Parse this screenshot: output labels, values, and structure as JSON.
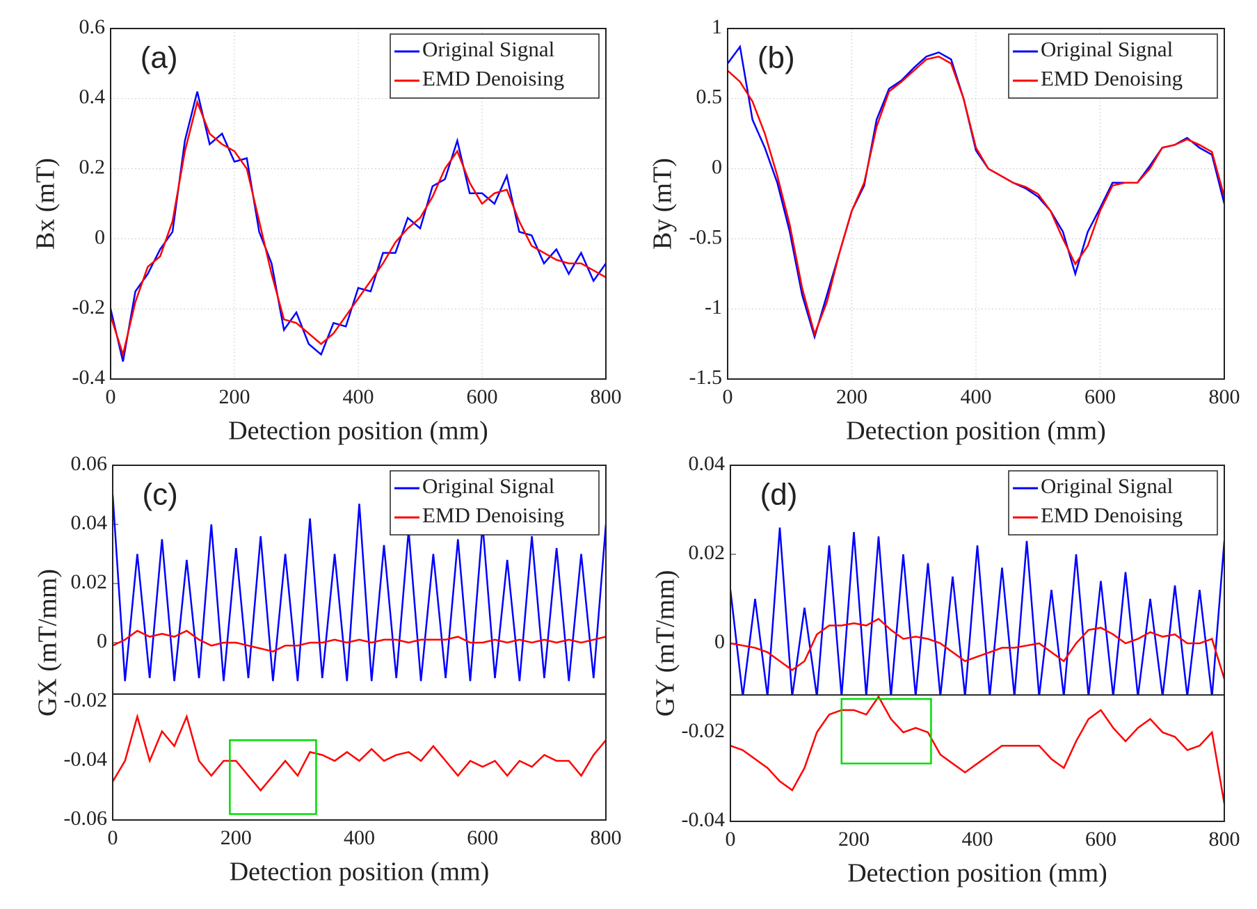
{
  "chart_data": [
    {
      "type": "line",
      "annotation": "(a)",
      "xlabel": "Detection position (mm)",
      "ylabel": "Bx (mT)",
      "x": [
        0,
        20,
        40,
        60,
        80,
        100,
        120,
        140,
        160,
        180,
        200,
        220,
        240,
        260,
        280,
        300,
        320,
        340,
        360,
        380,
        400,
        420,
        440,
        460,
        480,
        500,
        520,
        540,
        560,
        580,
        600,
        620,
        640,
        660,
        680,
        700,
        720,
        740,
        760,
        780,
        800
      ],
      "xlim": [
        0,
        800
      ],
      "xticks": [
        0,
        200,
        400,
        600,
        800
      ],
      "ylim": [
        -0.4,
        0.6
      ],
      "yticks": [
        -0.4,
        -0.2,
        0,
        0.2,
        0.4,
        0.6
      ],
      "grid": true,
      "legend": "upper right",
      "series": [
        {
          "name": "Original Signal",
          "color": "#0000ff",
          "values": [
            -0.2,
            -0.35,
            -0.15,
            -0.1,
            -0.03,
            0.02,
            0.28,
            0.42,
            0.27,
            0.3,
            0.22,
            0.23,
            0.02,
            -0.07,
            -0.26,
            -0.21,
            -0.3,
            -0.33,
            -0.24,
            -0.25,
            -0.14,
            -0.15,
            -0.04,
            -0.04,
            0.06,
            0.03,
            0.15,
            0.17,
            0.28,
            0.13,
            0.13,
            0.1,
            0.18,
            0.02,
            0.01,
            -0.07,
            -0.03,
            -0.1,
            -0.04,
            -0.12,
            -0.07
          ]
        },
        {
          "name": "EMD Denoising",
          "color": "#ff0000",
          "values": [
            -0.22,
            -0.33,
            -0.18,
            -0.08,
            -0.05,
            0.05,
            0.25,
            0.39,
            0.3,
            0.27,
            0.25,
            0.2,
            0.05,
            -0.1,
            -0.23,
            -0.24,
            -0.27,
            -0.3,
            -0.27,
            -0.22,
            -0.17,
            -0.12,
            -0.07,
            -0.01,
            0.03,
            0.06,
            0.12,
            0.2,
            0.25,
            0.16,
            0.1,
            0.13,
            0.14,
            0.05,
            -0.02,
            -0.04,
            -0.06,
            -0.07,
            -0.07,
            -0.09,
            -0.11
          ]
        }
      ]
    },
    {
      "type": "line",
      "annotation": "(b)",
      "xlabel": "Detection position (mm)",
      "ylabel": "By (mT)",
      "x": [
        0,
        20,
        40,
        60,
        80,
        100,
        120,
        140,
        160,
        180,
        200,
        220,
        240,
        260,
        280,
        300,
        320,
        340,
        360,
        380,
        400,
        420,
        440,
        460,
        480,
        500,
        520,
        540,
        560,
        580,
        600,
        620,
        640,
        660,
        680,
        700,
        720,
        740,
        760,
        780,
        800
      ],
      "xlim": [
        0,
        800
      ],
      "xticks": [
        0,
        200,
        400,
        600,
        800
      ],
      "ylim": [
        -1.5,
        1
      ],
      "yticks": [
        -1.5,
        -1,
        -0.5,
        0,
        0.5,
        1
      ],
      "grid": true,
      "legend": "upper right",
      "series": [
        {
          "name": "Original Signal",
          "color": "#0000ff",
          "values": [
            0.75,
            0.87,
            0.35,
            0.15,
            -0.1,
            -0.45,
            -0.9,
            -1.2,
            -0.9,
            -0.6,
            -0.3,
            -0.12,
            0.35,
            0.57,
            0.63,
            0.72,
            0.8,
            0.83,
            0.78,
            0.5,
            0.13,
            0.0,
            -0.05,
            -0.1,
            -0.14,
            -0.2,
            -0.3,
            -0.45,
            -0.75,
            -0.45,
            -0.28,
            -0.1,
            -0.1,
            -0.1,
            0.02,
            0.15,
            0.17,
            0.22,
            0.15,
            0.1,
            -0.25
          ]
        },
        {
          "name": "EMD Denoising",
          "color": "#ff0000",
          "values": [
            0.7,
            0.62,
            0.48,
            0.25,
            -0.05,
            -0.4,
            -0.85,
            -1.18,
            -0.95,
            -0.6,
            -0.3,
            -0.1,
            0.3,
            0.55,
            0.62,
            0.7,
            0.78,
            0.8,
            0.75,
            0.5,
            0.15,
            0.0,
            -0.05,
            -0.1,
            -0.13,
            -0.18,
            -0.3,
            -0.5,
            -0.68,
            -0.55,
            -0.3,
            -0.12,
            -0.1,
            -0.1,
            0.0,
            0.15,
            0.17,
            0.21,
            0.17,
            0.12,
            -0.2
          ]
        }
      ]
    },
    {
      "type": "line",
      "annotation": "(c)",
      "xlabel": "Detection position (mm)",
      "ylabel": "GX (mT/mm)",
      "x": [
        0,
        20,
        40,
        60,
        80,
        100,
        120,
        140,
        160,
        180,
        200,
        220,
        240,
        260,
        280,
        300,
        320,
        340,
        360,
        380,
        400,
        420,
        440,
        460,
        480,
        500,
        520,
        540,
        560,
        580,
        600,
        620,
        640,
        660,
        680,
        700,
        720,
        740,
        760,
        780,
        800
      ],
      "xlim": [
        0,
        800
      ],
      "xticks": [
        0,
        200,
        400,
        600,
        800
      ],
      "ylim": [
        -0.06,
        0.06
      ],
      "yticks": [
        -0.06,
        -0.04,
        -0.02,
        0,
        0.02,
        0.04,
        0.06
      ],
      "grid": false,
      "legend": "upper right",
      "series": [
        {
          "name": "Original Signal",
          "color": "#0000ff",
          "values": [
            0.05,
            -0.013,
            0.03,
            -0.012,
            0.035,
            -0.013,
            0.028,
            -0.012,
            0.04,
            -0.013,
            0.032,
            -0.012,
            0.036,
            -0.013,
            0.03,
            -0.013,
            0.042,
            -0.012,
            0.03,
            -0.013,
            0.047,
            -0.013,
            0.033,
            -0.012,
            0.038,
            -0.013,
            0.03,
            -0.012,
            0.035,
            -0.013,
            0.04,
            -0.012,
            0.028,
            -0.013,
            0.036,
            -0.012,
            0.032,
            -0.013,
            0.03,
            -0.012,
            0.04
          ]
        },
        {
          "name": "EMD Denoising",
          "color": "#ff0000",
          "values": [
            -0.001,
            0.001,
            0.004,
            0.002,
            0.003,
            0.002,
            0.004,
            0.001,
            -0.001,
            0.0,
            0.0,
            -0.001,
            -0.002,
            -0.003,
            -0.001,
            -0.001,
            0.0,
            0.0,
            0.001,
            0.0,
            0.001,
            0.0,
            0.001,
            0.001,
            0.0,
            0.001,
            0.001,
            0.001,
            0.002,
            0.0,
            0.0,
            0.001,
            0.0,
            0.001,
            0.0,
            0.001,
            0.0,
            0.001,
            0.0,
            0.001,
            0.002
          ]
        },
        {
          "color": "#ff0000",
          "inset": true,
          "values": [
            -0.047,
            -0.04,
            -0.025,
            -0.04,
            -0.03,
            -0.035,
            -0.025,
            -0.04,
            -0.045,
            -0.04,
            -0.04,
            -0.045,
            -0.05,
            -0.045,
            -0.04,
            -0.045,
            -0.037,
            -0.038,
            -0.04,
            -0.037,
            -0.04,
            -0.036,
            -0.04,
            -0.038,
            -0.037,
            -0.04,
            -0.035,
            -0.04,
            -0.045,
            -0.04,
            -0.042,
            -0.04,
            -0.045,
            -0.04,
            -0.042,
            -0.038,
            -0.04,
            -0.04,
            -0.045,
            -0.038,
            -0.033
          ]
        }
      ],
      "highlight": {
        "x": [
          190,
          330
        ],
        "y": [
          -0.058,
          -0.033
        ],
        "color": "#00dd00"
      }
    },
    {
      "type": "line",
      "annotation": "(d)",
      "xlabel": "Detection position (mm)",
      "ylabel": "GY (mT/mm)",
      "x": [
        0,
        20,
        40,
        60,
        80,
        100,
        120,
        140,
        160,
        180,
        200,
        220,
        240,
        260,
        280,
        300,
        320,
        340,
        360,
        380,
        400,
        420,
        440,
        460,
        480,
        500,
        520,
        540,
        560,
        580,
        600,
        620,
        640,
        660,
        680,
        700,
        720,
        740,
        760,
        780,
        800
      ],
      "xlim": [
        0,
        800
      ],
      "xticks": [
        0,
        200,
        400,
        600,
        800
      ],
      "ylim": [
        -0.04,
        0.04
      ],
      "yticks": [
        -0.04,
        -0.02,
        0,
        0.02,
        0.04
      ],
      "grid": false,
      "legend": "upper right",
      "series": [
        {
          "name": "Original Signal",
          "color": "#0000ff",
          "values": [
            0.012,
            -0.012,
            0.01,
            -0.012,
            0.026,
            -0.012,
            0.008,
            -0.012,
            0.022,
            -0.012,
            0.025,
            -0.012,
            0.024,
            -0.012,
            0.02,
            -0.012,
            0.018,
            -0.012,
            0.015,
            -0.012,
            0.022,
            -0.012,
            0.017,
            -0.012,
            0.023,
            -0.012,
            0.012,
            -0.012,
            0.02,
            -0.012,
            0.014,
            -0.012,
            0.016,
            -0.012,
            0.01,
            -0.012,
            0.013,
            -0.012,
            0.012,
            -0.012,
            0.023
          ]
        },
        {
          "name": "EMD Denoising",
          "color": "#ff0000",
          "values": [
            0.0,
            -0.0005,
            -0.001,
            -0.002,
            -0.004,
            -0.006,
            -0.004,
            0.002,
            0.004,
            0.004,
            0.0045,
            0.004,
            0.0055,
            0.003,
            0.001,
            0.0015,
            0.001,
            0.0,
            -0.002,
            -0.004,
            -0.003,
            -0.002,
            -0.001,
            -0.001,
            -0.0005,
            0.0,
            -0.002,
            -0.004,
            0.0,
            0.003,
            0.0035,
            0.002,
            0.0,
            0.001,
            0.0025,
            0.0015,
            0.002,
            0.0,
            0.0,
            0.001,
            -0.008
          ]
        },
        {
          "color": "#ff0000",
          "inset": true,
          "values": [
            -0.023,
            -0.024,
            -0.026,
            -0.028,
            -0.031,
            -0.033,
            -0.028,
            -0.02,
            -0.016,
            -0.015,
            -0.015,
            -0.016,
            -0.012,
            -0.017,
            -0.02,
            -0.019,
            -0.02,
            -0.025,
            -0.027,
            -0.029,
            -0.027,
            -0.025,
            -0.023,
            -0.023,
            -0.023,
            -0.023,
            -0.026,
            -0.028,
            -0.022,
            -0.017,
            -0.015,
            -0.019,
            -0.022,
            -0.019,
            -0.017,
            -0.02,
            -0.021,
            -0.024,
            -0.023,
            -0.02,
            -0.036
          ]
        }
      ],
      "highlight": {
        "x": [
          180,
          325
        ],
        "y": [
          -0.027,
          -0.0125
        ],
        "color": "#00dd00"
      }
    }
  ]
}
